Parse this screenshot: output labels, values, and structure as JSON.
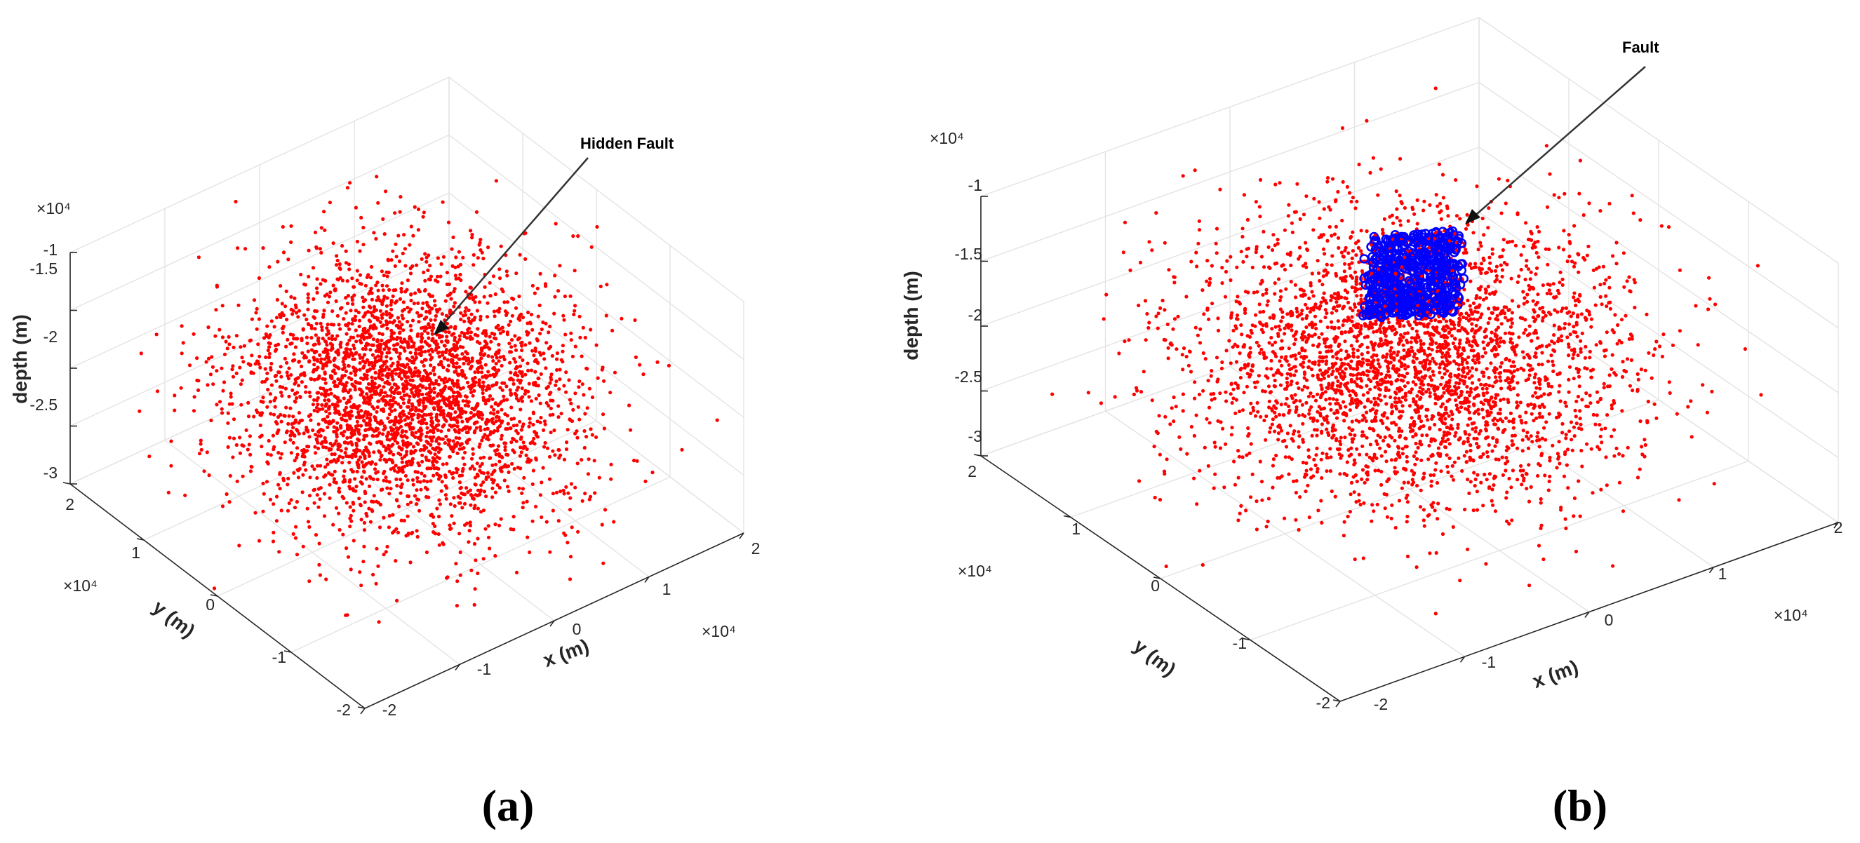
{
  "chart_data": [
    {
      "type": "scatter",
      "panel_label": "(a)",
      "annotation": "Hidden Fault",
      "xlabel": "x (m)",
      "ylabel": "y (m)",
      "zlabel": "depth (m)",
      "xlim": [
        -2,
        2
      ],
      "ylim": [
        -2,
        2
      ],
      "zlim": [
        -3,
        -1
      ],
      "x_ticks": [
        "-2",
        "-1",
        "0",
        "1",
        "2"
      ],
      "y_ticks": [
        "-2",
        "-1",
        "0",
        "1",
        "2"
      ],
      "z_ticks": [
        "-3",
        "-2.5",
        "-2",
        "-1.5",
        "-1"
      ],
      "x_scale": "×10⁴",
      "y_scale": "×10⁴",
      "z_scale": "×10⁴",
      "grid": true,
      "series": [
        {
          "color": "#ff0000",
          "marker": "dot",
          "distribution": "gaussian cloud centered near (0, 0, -2) ×10⁴ m"
        }
      ]
    },
    {
      "type": "scatter",
      "panel_label": "(b)",
      "annotation": "Fault",
      "xlabel": "x (m)",
      "ylabel": "y (m)",
      "zlabel": "depth (m)",
      "xlim": [
        -2,
        2
      ],
      "ylim": [
        -2,
        2
      ],
      "zlim": [
        -3,
        -1
      ],
      "x_ticks": [
        "-2",
        "-1",
        "0",
        "1",
        "2"
      ],
      "y_ticks": [
        "-2",
        "-1",
        "0",
        "1",
        "2"
      ],
      "z_ticks": [
        "-3",
        "-2.5",
        "-2",
        "-1.5",
        "-1"
      ],
      "x_scale": "×10⁴",
      "y_scale": "×10⁴",
      "z_scale": "×10⁴",
      "grid": true,
      "series": [
        {
          "color": "#ff0000",
          "marker": "dot",
          "distribution": "gaussian cloud centered near (0, 0, -2) ×10⁴ m"
        },
        {
          "color": "#0000ff",
          "marker": "circle",
          "distribution": "planar fault cluster near (0.3, 0.4) ×10⁴ m, depth -1.4 to -2 ×10⁴ m"
        }
      ]
    }
  ]
}
